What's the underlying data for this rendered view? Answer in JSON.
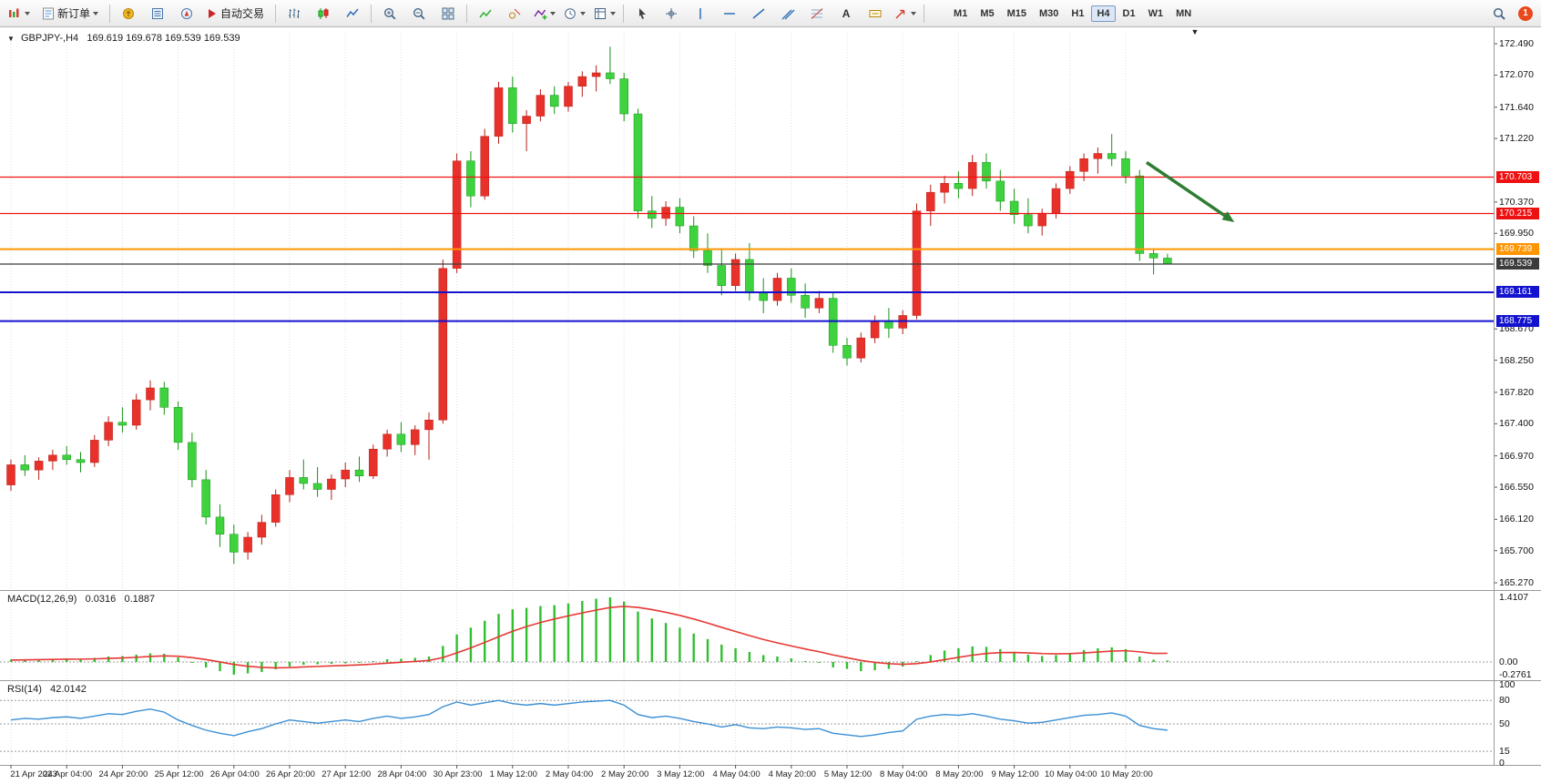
{
  "toolbar": {
    "new_order": "新订单",
    "autotrading": "自动交易",
    "text_tool": "A",
    "timeframes": [
      "M1",
      "M5",
      "M15",
      "M30",
      "H1",
      "H4",
      "D1",
      "W1",
      "MN"
    ],
    "active_timeframe": "H4",
    "notification_count": "1"
  },
  "icons": {
    "chart_menu_icon": "▼",
    "shift_marker_icon": "▼"
  },
  "chart_header": {
    "symbol_period": "GBPJPY-,H4",
    "ohlc": "169.619 169.678 169.539 169.539"
  },
  "indicators": {
    "macd": {
      "name": "MACD(12,26,9)",
      "value_main": "0.0316",
      "value_signal": "0.1887"
    },
    "rsi": {
      "name": "RSI(14)",
      "value": "42.0142"
    }
  },
  "chart_data": [
    {
      "type": "candlestick",
      "symbol": "GBPJPY-",
      "period": "H4",
      "ylim": [
        165.27,
        172.49
      ],
      "y_ticks": [
        "172.490",
        "172.070",
        "171.640",
        "171.220",
        "170.370",
        "169.950",
        "168.670",
        "168.250",
        "167.820",
        "167.400",
        "166.970",
        "166.550",
        "166.120",
        "165.700",
        "165.270"
      ],
      "x_labels": [
        "21 Apr 2023",
        "24 Apr 04:00",
        "24 Apr 20:00",
        "25 Apr 12:00",
        "26 Apr 04:00",
        "26 Apr 20:00",
        "27 Apr 12:00",
        "28 Apr 04:00",
        "30 Apr 23:00",
        "1 May 12:00",
        "2 May 04:00",
        "2 May 20:00",
        "3 May 12:00",
        "4 May 04:00",
        "4 May 20:00",
        "5 May 12:00",
        "8 May 04:00",
        "8 May 20:00",
        "9 May 12:00",
        "10 May 04:00",
        "10 May 20:00"
      ],
      "x_label_step": 4,
      "columns": [
        "open",
        "high",
        "low",
        "close"
      ],
      "up_color": "#e8312a",
      "down_color": "#3fd23f",
      "candles": [
        [
          166.58,
          166.92,
          166.5,
          166.85
        ],
        [
          166.85,
          166.98,
          166.7,
          166.78
        ],
        [
          166.78,
          166.95,
          166.65,
          166.9
        ],
        [
          166.9,
          167.05,
          166.78,
          166.98
        ],
        [
          166.98,
          167.1,
          166.85,
          166.92
        ],
        [
          166.92,
          167.02,
          166.75,
          166.88
        ],
        [
          166.88,
          167.25,
          166.82,
          167.18
        ],
        [
          167.18,
          167.5,
          167.1,
          167.42
        ],
        [
          167.42,
          167.62,
          167.28,
          167.38
        ],
        [
          167.38,
          167.8,
          167.32,
          167.72
        ],
        [
          167.72,
          167.98,
          167.58,
          167.88
        ],
        [
          167.88,
          167.96,
          167.52,
          167.62
        ],
        [
          167.62,
          167.7,
          167.05,
          167.15
        ],
        [
          167.15,
          167.28,
          166.55,
          166.65
        ],
        [
          166.65,
          166.78,
          166.05,
          166.15
        ],
        [
          166.15,
          166.32,
          165.75,
          165.92
        ],
        [
          165.92,
          166.05,
          165.52,
          165.68
        ],
        [
          165.68,
          165.95,
          165.58,
          165.88
        ],
        [
          165.88,
          166.18,
          165.78,
          166.08
        ],
        [
          166.08,
          166.52,
          166.02,
          166.45
        ],
        [
          166.45,
          166.78,
          166.35,
          166.68
        ],
        [
          166.68,
          166.92,
          166.52,
          166.6
        ],
        [
          166.6,
          166.82,
          166.42,
          166.52
        ],
        [
          166.52,
          166.72,
          166.38,
          166.66
        ],
        [
          166.66,
          166.88,
          166.55,
          166.78
        ],
        [
          166.78,
          166.96,
          166.62,
          166.7
        ],
        [
          166.7,
          167.12,
          166.66,
          167.06
        ],
        [
          167.06,
          167.32,
          166.96,
          167.26
        ],
        [
          167.26,
          167.42,
          167.02,
          167.12
        ],
        [
          167.12,
          167.38,
          166.98,
          167.32
        ],
        [
          167.32,
          167.55,
          166.92,
          167.45
        ],
        [
          167.45,
          169.6,
          167.4,
          169.48
        ],
        [
          169.48,
          171.02,
          169.42,
          170.92
        ],
        [
          170.92,
          171.05,
          170.3,
          170.45
        ],
        [
          170.45,
          171.35,
          170.4,
          171.25
        ],
        [
          171.25,
          171.98,
          171.15,
          171.9
        ],
        [
          171.9,
          172.05,
          171.3,
          171.42
        ],
        [
          171.42,
          171.6,
          171.05,
          171.52
        ],
        [
          171.52,
          171.88,
          171.45,
          171.8
        ],
        [
          171.8,
          171.92,
          171.55,
          171.65
        ],
        [
          171.65,
          171.98,
          171.58,
          171.92
        ],
        [
          171.92,
          172.12,
          171.78,
          172.05
        ],
        [
          172.05,
          172.2,
          171.85,
          172.1
        ],
        [
          172.1,
          172.45,
          171.95,
          172.02
        ],
        [
          172.02,
          172.1,
          171.45,
          171.55
        ],
        [
          171.55,
          171.62,
          170.15,
          170.25
        ],
        [
          170.25,
          170.45,
          170.02,
          170.15
        ],
        [
          170.15,
          170.38,
          170.05,
          170.3
        ],
        [
          170.3,
          170.42,
          169.95,
          170.05
        ],
        [
          170.05,
          170.18,
          169.62,
          169.72
        ],
        [
          169.72,
          169.95,
          169.42,
          169.52
        ],
        [
          169.52,
          169.75,
          169.12,
          169.25
        ],
        [
          169.25,
          169.68,
          169.18,
          169.6
        ],
        [
          169.6,
          169.82,
          169.05,
          169.15
        ],
        [
          169.15,
          169.35,
          168.88,
          169.05
        ],
        [
          169.05,
          169.42,
          168.98,
          169.35
        ],
        [
          169.35,
          169.48,
          169.02,
          169.12
        ],
        [
          169.12,
          169.28,
          168.82,
          168.95
        ],
        [
          168.95,
          169.18,
          168.88,
          169.08
        ],
        [
          169.08,
          169.15,
          168.35,
          168.45
        ],
        [
          168.45,
          168.55,
          168.18,
          168.28
        ],
        [
          168.28,
          168.62,
          168.22,
          168.55
        ],
        [
          168.55,
          168.85,
          168.48,
          168.78
        ],
        [
          168.78,
          168.95,
          168.55,
          168.68
        ],
        [
          168.68,
          168.92,
          168.6,
          168.85
        ],
        [
          168.85,
          170.35,
          168.8,
          170.25
        ],
        [
          170.25,
          170.6,
          170.05,
          170.5
        ],
        [
          170.5,
          170.72,
          170.35,
          170.62
        ],
        [
          170.62,
          170.78,
          170.42,
          170.55
        ],
        [
          170.55,
          171.0,
          170.45,
          170.9
        ],
        [
          170.9,
          171.02,
          170.55,
          170.65
        ],
        [
          170.65,
          170.8,
          170.25,
          170.38
        ],
        [
          170.38,
          170.55,
          170.08,
          170.2
        ],
        [
          170.2,
          170.42,
          169.95,
          170.05
        ],
        [
          170.05,
          170.28,
          169.92,
          170.22
        ],
        [
          170.22,
          170.62,
          170.15,
          170.55
        ],
        [
          170.55,
          170.85,
          170.48,
          170.78
        ],
        [
          170.78,
          171.02,
          170.65,
          170.95
        ],
        [
          170.95,
          171.1,
          170.75,
          171.02
        ],
        [
          171.02,
          171.28,
          170.85,
          170.95
        ],
        [
          170.95,
          171.05,
          170.62,
          170.72
        ],
        [
          170.72,
          170.8,
          169.58,
          169.68
        ],
        [
          169.68,
          169.75,
          169.4,
          169.62
        ],
        [
          169.619,
          169.678,
          169.539,
          169.539
        ]
      ],
      "hlines": [
        {
          "price": 170.703,
          "label": "170.703",
          "color": "#ee1111",
          "width": 1.2,
          "name": "resistance-line-1"
        },
        {
          "price": 170.215,
          "label": "170.215",
          "color": "#ee1111",
          "width": 1.2,
          "name": "resistance-line-2"
        },
        {
          "price": 169.739,
          "label": "169.739",
          "color": "#ff9500",
          "width": 2,
          "name": "pivot-line"
        },
        {
          "price": 169.539,
          "label": "169.539",
          "color": "#3c3c3c",
          "width": 1.2,
          "name": "current-price-line"
        },
        {
          "price": 169.161,
          "label": "169.161",
          "color": "#1212cf",
          "width": 2,
          "name": "support-line-1"
        },
        {
          "price": 168.775,
          "label": "168.775",
          "color": "#1212cf",
          "width": 2,
          "name": "support-line-2"
        }
      ],
      "trend_arrow": {
        "from_index": 81.5,
        "from_price": 170.9,
        "to_index": 87.8,
        "to_price": 170.1,
        "color": "#2e7d32"
      },
      "shift_marker_index": 85
    },
    {
      "type": "bar",
      "title": "MACD(12,26,9)",
      "ylim": [
        -0.2761,
        1.4107
      ],
      "scale_labels": [
        "1.4107",
        "0.00",
        "-0.2761"
      ],
      "histogram_color": "#2fbf2f",
      "signal_color": "#e53935",
      "values_histogram": [
        0.05,
        0.06,
        0.06,
        0.07,
        0.08,
        0.07,
        0.09,
        0.12,
        0.13,
        0.16,
        0.19,
        0.18,
        0.1,
        -0.02,
        -0.12,
        -0.2,
        -0.2761,
        -0.25,
        -0.22,
        -0.16,
        -0.1,
        -0.06,
        -0.05,
        -0.04,
        -0.03,
        -0.02,
        0.02,
        0.06,
        0.07,
        0.09,
        0.12,
        0.35,
        0.6,
        0.75,
        0.9,
        1.05,
        1.15,
        1.18,
        1.22,
        1.24,
        1.28,
        1.33,
        1.38,
        1.41,
        1.32,
        1.1,
        0.95,
        0.85,
        0.75,
        0.62,
        0.5,
        0.38,
        0.3,
        0.22,
        0.15,
        0.12,
        0.08,
        0.02,
        -0.02,
        -0.12,
        -0.15,
        -0.2,
        -0.18,
        -0.15,
        -0.1,
        0.02,
        0.15,
        0.25,
        0.3,
        0.34,
        0.33,
        0.28,
        0.22,
        0.16,
        0.13,
        0.15,
        0.2,
        0.26,
        0.3,
        0.32,
        0.28,
        0.12,
        0.05,
        0.0316
      ],
      "series_signal": [
        0.04,
        0.045,
        0.05,
        0.055,
        0.06,
        0.062,
        0.067,
        0.078,
        0.088,
        0.102,
        0.12,
        0.132,
        0.125,
        0.096,
        0.053,
        0.002,
        -0.054,
        -0.093,
        -0.118,
        -0.127,
        -0.122,
        -0.109,
        -0.097,
        -0.086,
        -0.075,
        -0.064,
        -0.047,
        -0.026,
        -0.007,
        0.012,
        0.034,
        0.097,
        0.198,
        0.308,
        0.426,
        0.551,
        0.671,
        0.773,
        0.862,
        0.938,
        1.006,
        1.071,
        1.133,
        1.188,
        1.214,
        1.191,
        1.143,
        1.084,
        1.017,
        0.938,
        0.85,
        0.756,
        0.665,
        0.576,
        0.491,
        0.417,
        0.35,
        0.284,
        0.223,
        0.154,
        0.093,
        0.034,
        -0.009,
        -0.037,
        -0.05,
        -0.036,
        0.001,
        0.051,
        0.101,
        0.149,
        0.185,
        0.204,
        0.207,
        0.198,
        0.184,
        0.177,
        0.182,
        0.198,
        0.218,
        0.238,
        0.246,
        0.221,
        0.187,
        0.1887
      ]
    },
    {
      "type": "line",
      "title": "RSI(14)",
      "ylim": [
        0,
        100
      ],
      "levels": [
        80,
        50,
        15
      ],
      "scale_labels": [
        "100",
        "80",
        "50",
        "15",
        "0"
      ],
      "line_color": "#3b8fd4",
      "values": [
        55,
        57,
        56,
        58,
        59,
        57,
        60,
        63,
        62,
        66,
        69,
        65,
        55,
        48,
        42,
        38,
        35,
        40,
        44,
        50,
        55,
        53,
        51,
        53,
        55,
        53,
        57,
        60,
        57,
        59,
        62,
        72,
        78,
        74,
        77,
        80,
        76,
        74,
        76,
        74,
        76,
        78,
        79,
        80,
        74,
        62,
        58,
        60,
        57,
        53,
        50,
        46,
        49,
        45,
        44,
        46,
        45,
        43,
        44,
        38,
        36,
        34,
        36,
        39,
        41,
        56,
        60,
        62,
        61,
        63,
        60,
        56,
        54,
        51,
        52,
        55,
        58,
        61,
        62,
        64,
        60,
        48,
        44,
        42.0142
      ]
    }
  ]
}
